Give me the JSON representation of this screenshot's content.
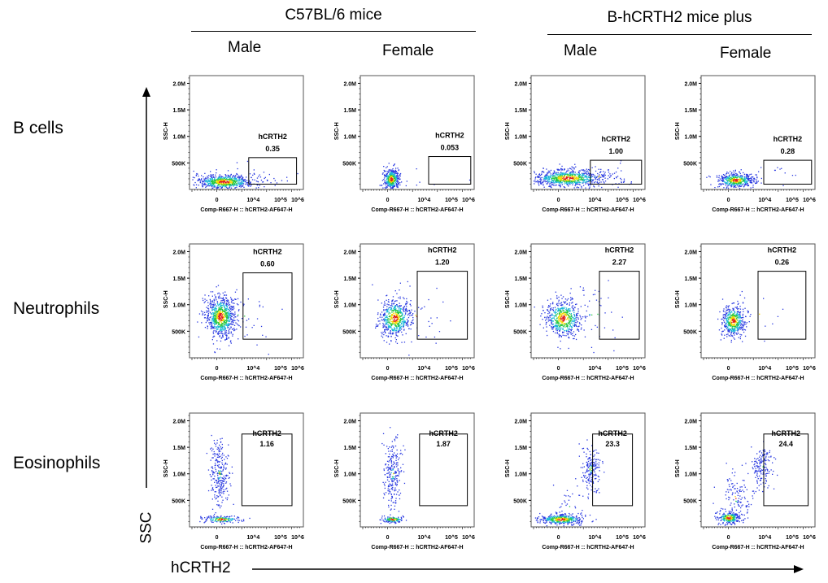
{
  "groups": [
    {
      "label": "C57BL/6 mice"
    },
    {
      "label": "B-hCRTH2 mice plus"
    }
  ],
  "sexes": [
    "Male",
    "Female",
    "Male",
    "Female"
  ],
  "rows": [
    {
      "label": "B cells"
    },
    {
      "label": "Neutrophils"
    },
    {
      "label": "Eosinophils"
    }
  ],
  "axes": {
    "y_arrow_label": "SSC",
    "x_arrow_label": "hCRTH2"
  },
  "chart_data": {
    "type": "scatter",
    "subtype": "flow cytometry density dot plots",
    "xlabel": "Comp-R667-H :: hCRTH2-AF647-H",
    "ylabel": "SSC-H",
    "x_ticks": [
      "0",
      "10^4",
      "10^5",
      "10^6"
    ],
    "y_ticks": [
      "500K",
      "1.0M",
      "1.5M",
      "2.0M"
    ],
    "gate_label": "hCRTH2",
    "panels": [
      {
        "row": "B cells",
        "group": "C57BL/6 mice",
        "sex": "Male",
        "gate_percent": "0.35"
      },
      {
        "row": "B cells",
        "group": "C57BL/6 mice",
        "sex": "Female",
        "gate_percent": "0.053"
      },
      {
        "row": "B cells",
        "group": "B-hCRTH2 mice plus",
        "sex": "Male",
        "gate_percent": "1.00"
      },
      {
        "row": "B cells",
        "group": "B-hCRTH2 mice plus",
        "sex": "Female",
        "gate_percent": "0.28"
      },
      {
        "row": "Neutrophils",
        "group": "C57BL/6 mice",
        "sex": "Male",
        "gate_percent": "0.60"
      },
      {
        "row": "Neutrophils",
        "group": "C57BL/6 mice",
        "sex": "Female",
        "gate_percent": "1.20"
      },
      {
        "row": "Neutrophils",
        "group": "B-hCRTH2 mice plus",
        "sex": "Male",
        "gate_percent": "2.27"
      },
      {
        "row": "Neutrophils",
        "group": "B-hCRTH2 mice plus",
        "sex": "Female",
        "gate_percent": "0.26"
      },
      {
        "row": "Eosinophils",
        "group": "C57BL/6 mice",
        "sex": "Male",
        "gate_percent": "1.16"
      },
      {
        "row": "Eosinophils",
        "group": "C57BL/6 mice",
        "sex": "Female",
        "gate_percent": "1.87"
      },
      {
        "row": "Eosinophils",
        "group": "B-hCRTH2 mice plus",
        "sex": "Male",
        "gate_percent": "23.3"
      },
      {
        "row": "Eosinophils",
        "group": "B-hCRTH2 mice plus",
        "sex": "Female",
        "gate_percent": "24.4"
      }
    ]
  }
}
